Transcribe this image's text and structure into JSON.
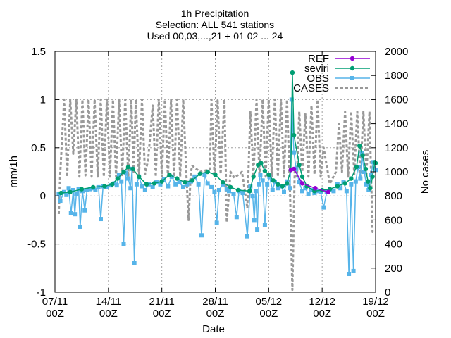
{
  "chart_data": {
    "type": "line",
    "title_lines": [
      "1h Precipitation",
      "Selection: ALL     541 stations",
      "Used 00,03,...,21 + 01 02 ... 24"
    ],
    "xlabel": "Date",
    "ylabel": "mm/1h",
    "y2label": "No cases",
    "x_range_days": [
      0,
      42
    ],
    "ylim": [
      -1,
      1.5
    ],
    "y2lim": [
      0,
      2000
    ],
    "grid": true,
    "legend_position": "top-right",
    "x_ticks": [
      {
        "day": 0,
        "line1": "07/11",
        "line2": "00Z"
      },
      {
        "day": 7,
        "line1": "14/11",
        "line2": "00Z"
      },
      {
        "day": 14,
        "line1": "21/11",
        "line2": "00Z"
      },
      {
        "day": 21,
        "line1": "28/11",
        "line2": "00Z"
      },
      {
        "day": 28,
        "line1": "05/12",
        "line2": "00Z"
      },
      {
        "day": 35,
        "line1": "12/12",
        "line2": "00Z"
      },
      {
        "day": 42,
        "line1": "19/12",
        "line2": "00Z"
      }
    ],
    "y_ticks": [
      {
        "v": -1,
        "label": "-1"
      },
      {
        "v": -0.5,
        "label": "-0.5"
      },
      {
        "v": 0,
        "label": "0"
      },
      {
        "v": 0.5,
        "label": "0.5"
      },
      {
        "v": 1,
        "label": "1"
      },
      {
        "v": 1.5,
        "label": "1.5"
      }
    ],
    "y2_ticks": [
      {
        "v": 0,
        "label": "0"
      },
      {
        "v": 200,
        "label": "200"
      },
      {
        "v": 400,
        "label": "400"
      },
      {
        "v": 600,
        "label": "600"
      },
      {
        "v": 800,
        "label": "800"
      },
      {
        "v": 1000,
        "label": "1000"
      },
      {
        "v": 1200,
        "label": "1200"
      },
      {
        "v": 1400,
        "label": "1400"
      },
      {
        "v": 1600,
        "label": "1600"
      },
      {
        "v": 1800,
        "label": "1800"
      },
      {
        "v": 2000,
        "label": "2000"
      }
    ],
    "series": [
      {
        "name": "REF",
        "color": "#9400d3",
        "marker": "circle",
        "axis": "y",
        "points": [
          [
            30.9,
            0.27
          ],
          [
            31.3,
            0.28
          ],
          [
            32.4,
            0.13
          ],
          [
            34.1,
            0.08
          ],
          [
            35.8,
            0.04
          ]
        ]
      },
      {
        "name": "seviri",
        "color": "#009e73",
        "marker": "circle",
        "axis": "y",
        "points": [
          [
            0.8,
            0.03
          ],
          [
            2,
            0.04
          ],
          [
            3.5,
            0.07
          ],
          [
            5,
            0.09
          ],
          [
            6.5,
            0.1
          ],
          [
            7.5,
            0.12
          ],
          [
            8.2,
            0.18
          ],
          [
            9.0,
            0.25
          ],
          [
            9.6,
            0.3
          ],
          [
            10.2,
            0.28
          ],
          [
            11,
            0.2
          ],
          [
            12,
            0.12
          ],
          [
            13,
            0.13
          ],
          [
            14,
            0.15
          ],
          [
            15,
            0.22
          ],
          [
            16,
            0.18
          ],
          [
            17,
            0.14
          ],
          [
            18,
            0.16
          ],
          [
            19,
            0.23
          ],
          [
            20,
            0.25
          ],
          [
            21,
            0.22
          ],
          [
            22,
            0.14
          ],
          [
            23,
            0.09
          ],
          [
            24,
            0.06
          ],
          [
            25.5,
            0.05
          ],
          [
            26,
            0.2
          ],
          [
            26.6,
            0.32
          ],
          [
            27,
            0.34
          ],
          [
            27.5,
            0.26
          ],
          [
            28,
            0.22
          ],
          [
            28.6,
            0.16
          ],
          [
            29.2,
            0.12
          ],
          [
            29.8,
            0.1
          ],
          [
            30.4,
            0.13
          ],
          [
            30.9,
            0.27
          ],
          [
            31.1,
            1.28
          ],
          [
            31.3,
            0.63
          ],
          [
            32,
            0.32
          ],
          [
            32.4,
            0.2
          ],
          [
            33,
            0.1
          ],
          [
            34,
            0.05
          ],
          [
            35,
            0.06
          ],
          [
            36,
            0.07
          ],
          [
            37,
            0.1
          ],
          [
            38,
            0.13
          ],
          [
            38.8,
            0.18
          ],
          [
            39.5,
            0.3
          ],
          [
            39.9,
            0.52
          ],
          [
            40.3,
            0.42
          ],
          [
            40.7,
            0.28
          ],
          [
            41,
            0.15
          ],
          [
            41.3,
            0.08
          ],
          [
            41.6,
            0.2
          ],
          [
            41.9,
            0.35
          ],
          [
            42,
            0.34
          ]
        ]
      },
      {
        "name": "OBS",
        "color": "#56b4e9",
        "marker": "square",
        "axis": "y",
        "points": [
          [
            0.5,
            0.02
          ],
          [
            0.7,
            -0.05
          ],
          [
            1.2,
            0.04
          ],
          [
            1.5,
            0.01
          ],
          [
            1.8,
            0.08
          ],
          [
            2.1,
            -0.18
          ],
          [
            2.4,
            0.06
          ],
          [
            2.6,
            -0.19
          ],
          [
            2.8,
            0.02
          ],
          [
            3.1,
            0.07
          ],
          [
            3.3,
            -0.32
          ],
          [
            3.6,
            0.05
          ],
          [
            3.9,
            -0.15
          ],
          [
            4.2,
            0.06
          ],
          [
            4.6,
            0.07
          ],
          [
            5.0,
            0.08
          ],
          [
            5.3,
            0.06
          ],
          [
            5.7,
            0.09
          ],
          [
            6.0,
            -0.24
          ],
          [
            6.3,
            0.1
          ],
          [
            6.8,
            0.09
          ],
          [
            7.3,
            0.11
          ],
          [
            7.8,
            0.13
          ],
          [
            8.1,
            0.11
          ],
          [
            8.4,
            0.22
          ],
          [
            8.7,
            0.15
          ],
          [
            9.0,
            -0.5
          ],
          [
            9.3,
            0.24
          ],
          [
            9.6,
            0.18
          ],
          [
            9.9,
            0.08
          ],
          [
            10.1,
            0.28
          ],
          [
            10.4,
            -0.7
          ],
          [
            10.7,
            0.12
          ],
          [
            11.0,
            0.2
          ],
          [
            11.4,
            0.1
          ],
          [
            11.8,
            0.06
          ],
          [
            12.3,
            0.12
          ],
          [
            12.8,
            0.09
          ],
          [
            13.3,
            0.14
          ],
          [
            13.8,
            0.12
          ],
          [
            14.3,
            0.17
          ],
          [
            14.8,
            0.1
          ],
          [
            15.3,
            0.2
          ],
          [
            15.8,
            0.12
          ],
          [
            16.3,
            0.14
          ],
          [
            16.8,
            0.09
          ],
          [
            17.3,
            0.12
          ],
          [
            17.8,
            0.15
          ],
          [
            18.3,
            0.2
          ],
          [
            18.8,
            0.12
          ],
          [
            19.2,
            -0.41
          ],
          [
            19.6,
            0.22
          ],
          [
            20.0,
            0.13
          ],
          [
            20.5,
            0.09
          ],
          [
            20.9,
            0.04
          ],
          [
            21.2,
            -0.28
          ],
          [
            21.5,
            0.06
          ],
          [
            22.0,
            0.12
          ],
          [
            22.5,
            0.07
          ],
          [
            22.8,
            0.05
          ],
          [
            23.4,
            0.02
          ],
          [
            23.8,
            -0.22
          ],
          [
            24.1,
            0.05
          ],
          [
            24.6,
            0.03
          ],
          [
            25.2,
            -0.42
          ],
          [
            25.6,
            0.1
          ],
          [
            25.9,
            0.0
          ],
          [
            26.1,
            -0.25
          ],
          [
            26.3,
            0.05
          ],
          [
            26.5,
            -0.35
          ],
          [
            26.7,
            0.12
          ],
          [
            26.9,
            0.22
          ],
          [
            27.2,
            0.16
          ],
          [
            27.5,
            -0.3
          ],
          [
            27.8,
            0.12
          ],
          [
            28.1,
            0.2
          ],
          [
            28.5,
            0.06
          ],
          [
            28.8,
            0.14
          ],
          [
            29.2,
            0.08
          ],
          [
            29.6,
            0.1
          ],
          [
            30.0,
            0.04
          ],
          [
            30.4,
            0.15
          ],
          [
            30.8,
            0.08
          ],
          [
            31.0,
            1.0
          ],
          [
            31.3,
            0.45
          ],
          [
            31.6,
            0.28
          ],
          [
            32.0,
            0.14
          ],
          [
            32.4,
            0.05
          ],
          [
            32.8,
            0.08
          ],
          [
            33.2,
            0.02
          ],
          [
            33.6,
            0.06
          ],
          [
            34.0,
            0.03
          ],
          [
            34.4,
            0.05
          ],
          [
            34.8,
            0.04
          ],
          [
            35.2,
            -0.12
          ],
          [
            35.6,
            0.04
          ],
          [
            36.0,
            0.06
          ],
          [
            36.5,
            0.05
          ],
          [
            37.0,
            0.12
          ],
          [
            37.4,
            0.08
          ],
          [
            37.8,
            0.14
          ],
          [
            38.2,
            0.05
          ],
          [
            38.5,
            -0.81
          ],
          [
            38.8,
            0.12
          ],
          [
            39.1,
            -0.78
          ],
          [
            39.4,
            0.15
          ],
          [
            39.7,
            0.3
          ],
          [
            40.0,
            0.18
          ],
          [
            40.2,
            0.44
          ],
          [
            40.5,
            0.25
          ],
          [
            40.8,
            0.12
          ],
          [
            41.1,
            0.06
          ],
          [
            41.4,
            0.22
          ],
          [
            41.7,
            0.35
          ],
          [
            42.0,
            0.27
          ]
        ]
      },
      {
        "name": "CASES",
        "color": "#999999",
        "marker": "none",
        "dash": true,
        "axis": "y2",
        "points": [
          [
            0.5,
            650
          ],
          [
            0.7,
            1000
          ],
          [
            1.2,
            1600
          ],
          [
            1.6,
            960
          ],
          [
            2.0,
            1600
          ],
          [
            2.4,
            1150
          ],
          [
            2.8,
            1600
          ],
          [
            3.2,
            960
          ],
          [
            3.6,
            1600
          ],
          [
            4.0,
            970
          ],
          [
            4.4,
            1600
          ],
          [
            4.8,
            960
          ],
          [
            5.2,
            1600
          ],
          [
            5.6,
            960
          ],
          [
            6.0,
            1600
          ],
          [
            6.4,
            960
          ],
          [
            6.8,
            1600
          ],
          [
            7.2,
            960
          ],
          [
            7.6,
            1600
          ],
          [
            8.0,
            960
          ],
          [
            8.4,
            1600
          ],
          [
            8.8,
            960
          ],
          [
            9.2,
            1600
          ],
          [
            9.6,
            960
          ],
          [
            10.0,
            1600
          ],
          [
            10.3,
            1000
          ],
          [
            10.6,
            1600
          ],
          [
            11.0,
            960
          ],
          [
            11.4,
            1600
          ],
          [
            11.8,
            980
          ],
          [
            12.2,
            1100
          ],
          [
            12.8,
            1550
          ],
          [
            13.2,
            960
          ],
          [
            13.6,
            1600
          ],
          [
            14.0,
            960
          ],
          [
            14.4,
            1600
          ],
          [
            14.8,
            960
          ],
          [
            15.2,
            1600
          ],
          [
            15.6,
            960
          ],
          [
            16.0,
            1600
          ],
          [
            16.4,
            960
          ],
          [
            16.8,
            1600
          ],
          [
            17.2,
            1000
          ],
          [
            17.5,
            600
          ],
          [
            17.8,
            1000
          ],
          [
            18.0,
            1050
          ],
          [
            19.0,
            1000
          ],
          [
            20.3,
            1020
          ],
          [
            20.5,
            1600
          ],
          [
            20.9,
            960
          ],
          [
            21.3,
            1600
          ],
          [
            21.7,
            980
          ],
          [
            22.2,
            1600
          ],
          [
            22.5,
            580
          ],
          [
            23.0,
            1000
          ],
          [
            23.5,
            950
          ],
          [
            24.5,
            1000
          ],
          [
            25.2,
            700
          ],
          [
            25.6,
            1500
          ],
          [
            26.0,
            960
          ],
          [
            26.4,
            1600
          ],
          [
            26.8,
            960
          ],
          [
            27.2,
            1600
          ],
          [
            27.6,
            960
          ],
          [
            28.0,
            1600
          ],
          [
            28.4,
            960
          ],
          [
            28.8,
            1600
          ],
          [
            29.2,
            960
          ],
          [
            29.6,
            1600
          ],
          [
            30.0,
            960
          ],
          [
            30.4,
            1600
          ],
          [
            30.8,
            800
          ],
          [
            31.1,
            20
          ],
          [
            31.4,
            1000
          ],
          [
            31.7,
            960
          ],
          [
            32.0,
            1500
          ],
          [
            32.4,
            1000
          ],
          [
            32.8,
            1480
          ],
          [
            33.2,
            960
          ],
          [
            33.6,
            1550
          ],
          [
            34.0,
            980
          ],
          [
            34.4,
            1600
          ],
          [
            34.8,
            960
          ],
          [
            35.2,
            1200
          ],
          [
            36.0,
            900
          ],
          [
            36.8,
            1000
          ],
          [
            37.2,
            1400
          ],
          [
            37.6,
            1000
          ],
          [
            38.0,
            1500
          ],
          [
            38.4,
            960
          ],
          [
            38.8,
            1500
          ],
          [
            39.2,
            980
          ],
          [
            39.6,
            1500
          ],
          [
            40.0,
            960
          ],
          [
            40.4,
            1500
          ],
          [
            40.8,
            980
          ],
          [
            41.2,
            1500
          ],
          [
            41.6,
            500
          ],
          [
            42.0,
            500
          ]
        ]
      }
    ]
  }
}
